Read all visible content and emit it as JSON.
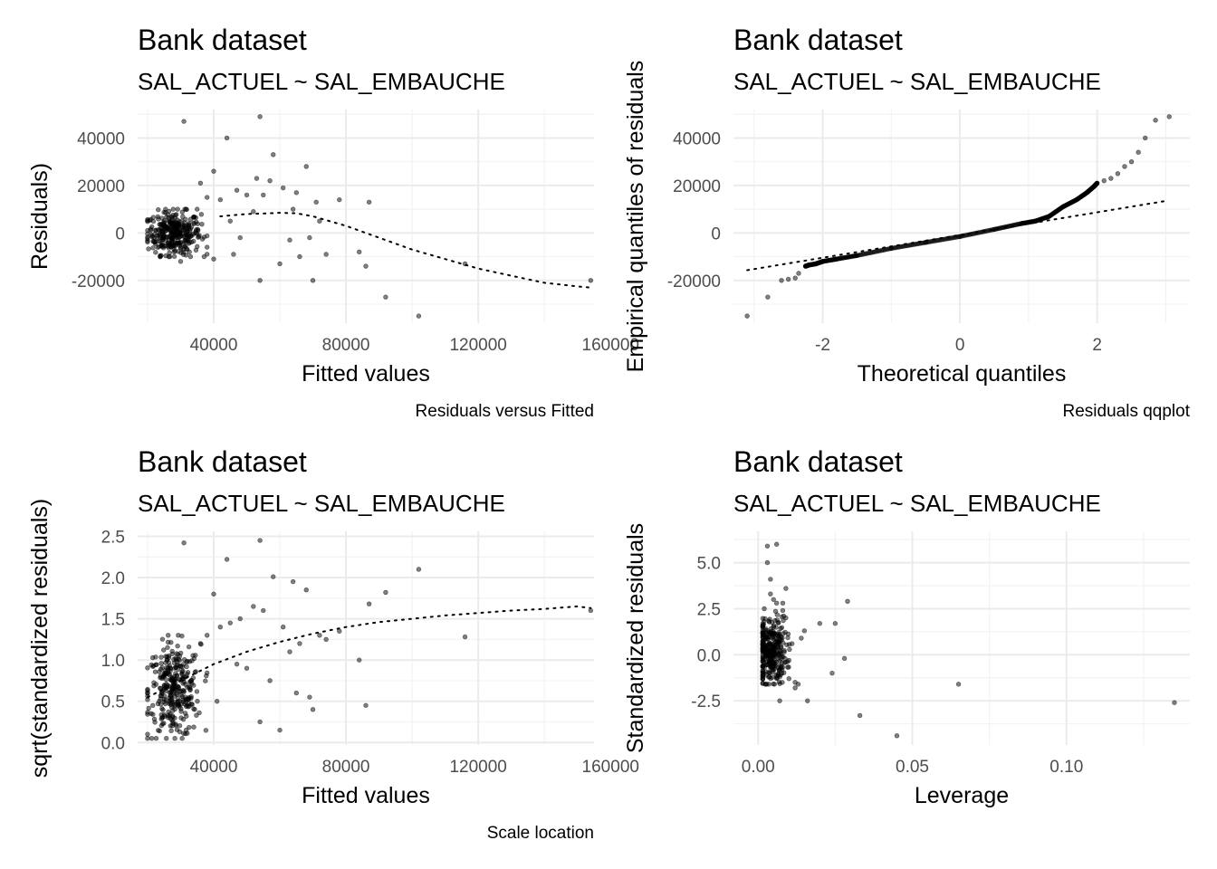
{
  "chart_data": [
    {
      "type": "scatter",
      "title": "Bank dataset",
      "subtitle": "SAL_ACTUEL ~ SAL_EMBAUCHE",
      "xlabel": "Fitted values",
      "ylabel": "Residuals)",
      "caption": "Residuals versus Fitted",
      "xlim": [
        17000,
        155000
      ],
      "ylim": [
        -38000,
        52000
      ],
      "xticks": [
        40000,
        80000,
        120000,
        160000
      ],
      "xtick_labels": [
        "40000",
        "80000",
        "120000",
        "160000"
      ],
      "yticks": [
        -20000,
        0,
        20000,
        40000
      ],
      "ytick_labels": [
        "-20000",
        "0",
        "20000",
        "40000"
      ],
      "grid": true,
      "series": [
        {
          "marker": "point",
          "x": [
            31000,
            54000,
            44000,
            58000,
            68000,
            40000,
            64000,
            87000,
            36000,
            47000,
            53000,
            57000,
            61000,
            71000,
            78000,
            35000,
            38000,
            42000,
            50000,
            55000,
            65000,
            72000,
            45000,
            48000,
            52000,
            63000,
            66000,
            69000,
            84000,
            86000,
            116000,
            154000,
            92000,
            102000,
            54000,
            70000,
            40000,
            46000,
            60000,
            74000,
            30000,
            33000,
            38000,
            28000,
            32000
          ],
          "y": [
            47000,
            49000,
            40000,
            33000,
            28000,
            26000,
            10000,
            13000,
            21000,
            18000,
            23000,
            22000,
            19000,
            13000,
            14000,
            10000,
            15000,
            14000,
            16000,
            16000,
            17000,
            5000,
            5000,
            -2000,
            9000,
            -3000,
            -10000,
            -2000,
            -8000,
            -14000,
            -13000,
            -20000,
            -27000,
            -35000,
            -20000,
            -20000,
            -11000,
            -9000,
            -13000,
            -9000,
            -12000,
            -10000,
            -6000,
            -8000,
            -7000
          ]
        },
        {
          "marker": "dotted-smooth",
          "x": [
            42000,
            50000,
            55000,
            60000,
            65000,
            70000,
            80000,
            90000,
            100000,
            110000,
            120000,
            130000,
            140000,
            150000,
            154000
          ],
          "y": [
            7000,
            8000,
            8200,
            8500,
            8300,
            7000,
            3000,
            -2000,
            -7000,
            -11000,
            -15000,
            -18000,
            -21000,
            -22500,
            -23000
          ]
        }
      ],
      "dense_cluster": {
        "x_range": [
          20000,
          38000
        ],
        "y_range": [
          -10000,
          10000
        ],
        "center": [
          28000,
          0
        ]
      }
    },
    {
      "type": "scatter",
      "title": "Bank dataset",
      "subtitle": "SAL_ACTUEL ~ SAL_EMBAUCHE",
      "xlabel": "Theoretical quantiles",
      "ylabel": "Empirical quantiles of residuals",
      "caption": "Residuals qqplot",
      "xlim": [
        -3.3,
        3.35
      ],
      "ylim": [
        -38000,
        52000
      ],
      "xticks": [
        -2,
        0,
        2
      ],
      "xtick_labels": [
        "-2",
        "0",
        "2"
      ],
      "yticks": [
        -20000,
        0,
        20000,
        40000
      ],
      "ytick_labels": [
        "-20000",
        "0",
        "20000",
        "40000"
      ],
      "grid": true,
      "series": [
        {
          "marker": "point",
          "x": [
            -3.1,
            -2.8,
            -2.6,
            -2.5,
            -2.4,
            -2.35,
            -2.25,
            -2.2,
            -2.1,
            -2.0,
            -1.8,
            -1.5,
            -1.0,
            -0.5,
            0.0,
            0.5,
            0.9,
            1.1,
            1.3,
            1.5,
            1.7,
            1.85,
            1.95,
            2.0,
            2.1,
            2.2,
            2.3,
            2.4,
            2.5,
            2.6,
            2.7,
            2.85,
            3.05
          ],
          "y": [
            -35000,
            -27000,
            -20000,
            -19500,
            -19000,
            -17000,
            -14000,
            -13500,
            -13000,
            -12000,
            -11000,
            -9500,
            -6500,
            -4000,
            -1500,
            1500,
            4000,
            5000,
            7000,
            11000,
            14000,
            17000,
            19500,
            21000,
            22000,
            23000,
            25000,
            28000,
            30000,
            34000,
            40000,
            47500,
            49000
          ]
        },
        {
          "marker": "dotted-reference",
          "x": [
            -3.1,
            3.0
          ],
          "y": [
            -15700,
            13500
          ]
        }
      ]
    },
    {
      "type": "scatter",
      "title": "Bank dataset",
      "subtitle": "SAL_ACTUEL ~ SAL_EMBAUCHE",
      "xlabel": "Fitted values",
      "ylabel": "sqrt(standardized residuals)",
      "caption": "Scale location",
      "xlim": [
        17000,
        155000
      ],
      "ylim": [
        -0.03,
        2.56
      ],
      "xticks": [
        40000,
        80000,
        120000,
        160000
      ],
      "xtick_labels": [
        "40000",
        "80000",
        "120000",
        "160000"
      ],
      "yticks": [
        0.0,
        0.5,
        1.0,
        1.5,
        2.0,
        2.5
      ],
      "ytick_labels": [
        "0.0",
        "0.5",
        "1.0",
        "1.5",
        "2.0",
        "2.5"
      ],
      "grid": true,
      "series": [
        {
          "marker": "point",
          "x": [
            31000,
            54000,
            44000,
            58000,
            68000,
            40000,
            64000,
            102000,
            92000,
            87000,
            116000,
            154000,
            86000,
            84000,
            54000,
            60000,
            48000,
            52000,
            55000,
            61000,
            63000,
            66000,
            70000,
            72000,
            74000,
            78000,
            45000,
            42000,
            38000,
            36000,
            50000,
            57000,
            65000,
            69000,
            47000,
            41000
          ],
          "y": [
            2.42,
            2.45,
            2.22,
            2.01,
            1.85,
            1.8,
            1.95,
            2.1,
            1.82,
            1.68,
            1.28,
            1.6,
            0.45,
            1.0,
            0.25,
            0.15,
            1.5,
            1.65,
            1.6,
            1.4,
            1.1,
            1.2,
            0.4,
            1.3,
            1.25,
            1.35,
            1.45,
            1.4,
            1.3,
            1.2,
            0.9,
            0.75,
            0.6,
            0.55,
            0.95,
            0.5
          ]
        },
        {
          "marker": "dotted-smooth",
          "x": [
            20000,
            30000,
            40000,
            50000,
            60000,
            70000,
            80000,
            90000,
            100000,
            110000,
            120000,
            130000,
            140000,
            150000,
            154000
          ],
          "y": [
            0.55,
            0.75,
            0.95,
            1.1,
            1.22,
            1.32,
            1.4,
            1.46,
            1.5,
            1.54,
            1.57,
            1.6,
            1.62,
            1.65,
            1.63
          ]
        }
      ],
      "dense_cluster": {
        "x_range": [
          20000,
          38000
        ],
        "y_range": [
          0.05,
          1.3
        ],
        "center": [
          28000,
          0.62
        ]
      }
    },
    {
      "type": "scatter",
      "title": "Bank dataset",
      "subtitle": "SAL_ACTUEL ~ SAL_EMBAUCHE",
      "xlabel": "Leverage",
      "ylabel": "Standardized residuals",
      "caption": "",
      "xlim": [
        -0.008,
        0.14
      ],
      "ylim": [
        -4.9,
        6.7
      ],
      "xticks": [
        0.0,
        0.05,
        0.1
      ],
      "xtick_labels": [
        "0.00",
        "0.05",
        "0.10"
      ],
      "yticks": [
        -2.5,
        0.0,
        2.5,
        5.0
      ],
      "ytick_labels": [
        "-2.5",
        "0.0",
        "2.5",
        "5.0"
      ],
      "grid": true,
      "series": [
        {
          "marker": "point",
          "x": [
            0.135,
            0.065,
            0.045,
            0.033,
            0.029,
            0.028,
            0.025,
            0.024,
            0.02,
            0.016,
            0.015,
            0.014,
            0.013,
            0.012,
            0.011,
            0.01,
            0.009,
            0.008,
            0.007,
            0.006,
            0.005,
            0.004,
            0.003,
            0.002,
            0.003,
            0.004,
            0.006,
            0.007,
            0.008,
            0.009,
            0.01,
            0.012
          ],
          "y": [
            -2.6,
            -1.6,
            -4.4,
            -3.3,
            2.9,
            -0.2,
            1.7,
            -1.0,
            1.7,
            -2.5,
            1.3,
            0.9,
            -1.6,
            -1.8,
            0.6,
            -0.3,
            2.0,
            2.8,
            -2.5,
            6.0,
            3.0,
            3.3,
            5.9,
            2.5,
            5.0,
            4.1,
            2.8,
            -1.2,
            2.4,
            3.6,
            -1.3,
            -1.5
          ]
        }
      ],
      "dense_cluster": {
        "x_range": [
          0.0015,
          0.013
        ],
        "y_range": [
          -1.6,
          2.5
        ],
        "center": [
          0.004,
          0.2
        ]
      }
    }
  ]
}
